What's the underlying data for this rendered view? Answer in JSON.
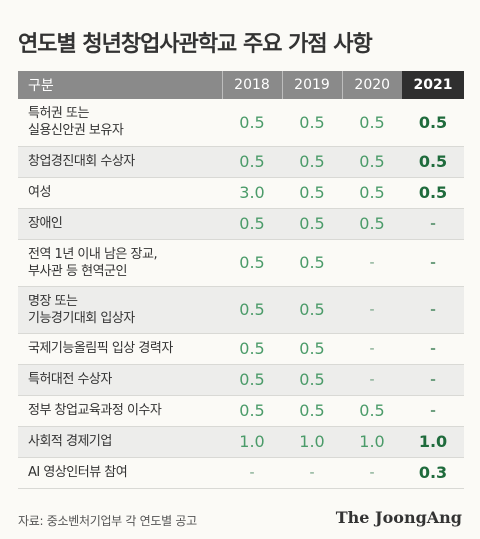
{
  "title": "연도별 청년창업사관학교 주요 가점 사항",
  "table": {
    "headers": [
      "구분",
      "2018",
      "2019",
      "2020",
      "2021"
    ],
    "rows": [
      {
        "label": "특허권 또는\n실용신안권 보유자",
        "values": [
          "0.5",
          "0.5",
          "0.5",
          "0.5"
        ]
      },
      {
        "label": "창업경진대회 수상자",
        "values": [
          "0.5",
          "0.5",
          "0.5",
          "0.5"
        ]
      },
      {
        "label": "여성",
        "values": [
          "3.0",
          "0.5",
          "0.5",
          "0.5"
        ]
      },
      {
        "label": "장애인",
        "values": [
          "0.5",
          "0.5",
          "0.5",
          "-"
        ]
      },
      {
        "label": "전역 1년 이내 남은 장교,\n부사관 등 현역군인",
        "values": [
          "0.5",
          "0.5",
          "-",
          "-"
        ]
      },
      {
        "label": "명장 또는\n기능경기대회 입상자",
        "values": [
          "0.5",
          "0.5",
          "-",
          "-"
        ]
      },
      {
        "label": "국제기능올림픽 입상 경력자",
        "values": [
          "0.5",
          "0.5",
          "-",
          "-"
        ]
      },
      {
        "label": "특허대전 수상자",
        "values": [
          "0.5",
          "0.5",
          "-",
          "-"
        ]
      },
      {
        "label": "정부 창업교육과정 이수자",
        "values": [
          "0.5",
          "0.5",
          "0.5",
          "-"
        ]
      },
      {
        "label": "사회적 경제기업",
        "values": [
          "1.0",
          "1.0",
          "1.0",
          "1.0"
        ]
      },
      {
        "label": "AI 영상인터뷰 참여",
        "values": [
          "-",
          "-",
          "-",
          "0.3"
        ]
      }
    ]
  },
  "source": "자료: 중소벤처기업부 각 연도별 공고",
  "logo": "The JoongAng"
}
